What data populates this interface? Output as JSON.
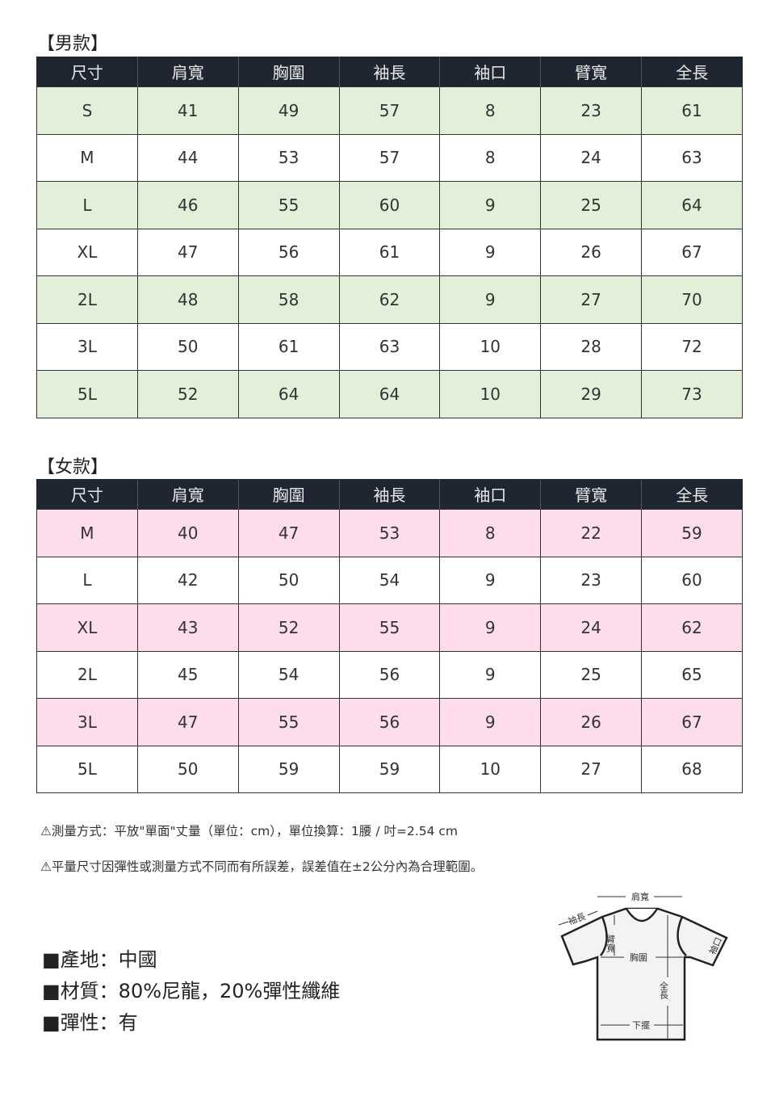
{
  "men": {
    "title": "【男款】",
    "headers": [
      "尺寸",
      "肩寬",
      "胸圍",
      "袖長",
      "袖口",
      "臂寬",
      "全長"
    ],
    "rows": [
      [
        "S",
        "41",
        "49",
        "57",
        "8",
        "23",
        "61"
      ],
      [
        "M",
        "44",
        "53",
        "57",
        "8",
        "24",
        "63"
      ],
      [
        "L",
        "46",
        "55",
        "60",
        "9",
        "25",
        "64"
      ],
      [
        "XL",
        "47",
        "56",
        "61",
        "9",
        "26",
        "67"
      ],
      [
        "2L",
        "48",
        "58",
        "62",
        "9",
        "27",
        "70"
      ],
      [
        "3L",
        "50",
        "61",
        "63",
        "10",
        "28",
        "72"
      ],
      [
        "5L",
        "52",
        "64",
        "64",
        "10",
        "29",
        "73"
      ]
    ],
    "stripe_color": "#e2f0d9"
  },
  "women": {
    "title": "【女款】",
    "headers": [
      "尺寸",
      "肩寬",
      "胸圍",
      "袖長",
      "袖口",
      "臂寬",
      "全長"
    ],
    "rows": [
      [
        "M",
        "40",
        "47",
        "53",
        "8",
        "22",
        "59"
      ],
      [
        "L",
        "42",
        "50",
        "54",
        "9",
        "23",
        "60"
      ],
      [
        "XL",
        "43",
        "52",
        "55",
        "9",
        "24",
        "62"
      ],
      [
        "2L",
        "45",
        "54",
        "56",
        "9",
        "25",
        "65"
      ],
      [
        "3L",
        "47",
        "55",
        "56",
        "9",
        "26",
        "67"
      ],
      [
        "5L",
        "50",
        "59",
        "59",
        "10",
        "27",
        "68"
      ]
    ],
    "stripe_color": "#fddcec"
  },
  "header_color": "#1f2631",
  "notes": [
    "⚠測量方式：平放\"單面\"丈量（單位：cm），單位換算：1腰 / 吋=2.54 cm",
    "⚠平量尺寸因彈性或測量方式不同而有所誤差，誤差值在±2公分內為合理範圍。"
  ],
  "specs": [
    "■產地：中國",
    "■材質：80%尼龍，20%彈性纖維",
    "■彈性：有"
  ],
  "diagram": {
    "shoulder": "肩寬",
    "sleeve": "袖長",
    "arm": "臂寬",
    "chest": "胸圍",
    "cuff": "袖口",
    "length": "全長",
    "hem": "下擺"
  }
}
